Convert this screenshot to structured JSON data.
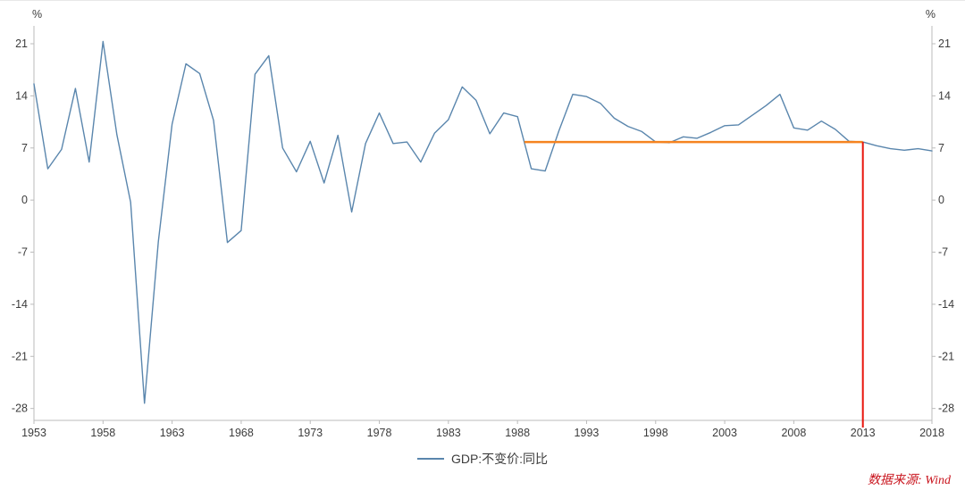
{
  "chart_data": {
    "type": "line",
    "title": "",
    "xlabel": "",
    "ylabel": "",
    "y_axis_unit": "%",
    "xlim": [
      1953,
      2018
    ],
    "ylim": [
      -29.6,
      23.4
    ],
    "x_ticks": [
      1953,
      1958,
      1963,
      1968,
      1973,
      1978,
      1983,
      1988,
      1993,
      1998,
      2003,
      2008,
      2013,
      2018
    ],
    "y_ticks": [
      21,
      14,
      7,
      0,
      -7,
      -14,
      -21,
      -28
    ],
    "grid": "off",
    "legend_position": "bottom-center",
    "series": [
      {
        "name": "GDP:不变价:同比",
        "color": "#5a86ad",
        "x": [
          1953,
          1954,
          1955,
          1956,
          1957,
          1958,
          1959,
          1960,
          1961,
          1962,
          1963,
          1964,
          1965,
          1966,
          1967,
          1968,
          1969,
          1970,
          1971,
          1972,
          1973,
          1974,
          1975,
          1976,
          1977,
          1978,
          1979,
          1980,
          1981,
          1982,
          1983,
          1984,
          1985,
          1986,
          1987,
          1988,
          1989,
          1990,
          1991,
          1992,
          1993,
          1994,
          1995,
          1996,
          1997,
          1998,
          1999,
          2000,
          2001,
          2002,
          2003,
          2004,
          2005,
          2006,
          2007,
          2008,
          2009,
          2010,
          2011,
          2012,
          2013,
          2014,
          2015,
          2016,
          2017,
          2018
        ],
        "values": [
          15.6,
          4.2,
          6.8,
          15.0,
          5.1,
          21.3,
          8.8,
          -0.3,
          -27.3,
          -5.6,
          10.2,
          18.3,
          17.0,
          10.7,
          -5.7,
          -4.1,
          16.9,
          19.4,
          7.0,
          3.8,
          7.9,
          2.3,
          8.7,
          -1.6,
          7.6,
          11.7,
          7.6,
          7.8,
          5.1,
          9.0,
          10.8,
          15.2,
          13.4,
          8.9,
          11.7,
          11.2,
          4.2,
          3.9,
          9.3,
          14.2,
          13.9,
          13.0,
          11.0,
          9.9,
          9.2,
          7.8,
          7.7,
          8.5,
          8.3,
          9.1,
          10.0,
          10.1,
          11.4,
          12.7,
          14.2,
          9.7,
          9.4,
          10.6,
          9.5,
          7.9,
          7.8,
          7.3,
          6.9,
          6.7,
          6.9,
          6.6
        ]
      }
    ],
    "annotations": {
      "orange_hline": {
        "value": 7.8,
        "x_start": 1988.5,
        "x_end": 2013,
        "color": "#f5831f"
      },
      "red_vline": {
        "x": 2013,
        "y_top": 7.8,
        "color": "#e8140c"
      }
    },
    "legend": {
      "label": "GDP:不变价:同比",
      "color": "#5a86ad"
    },
    "source": "数据来源: Wind",
    "colors": {
      "line": "#5a86ad",
      "orange": "#f5831f",
      "red": "#e8140c",
      "axis": "#bbbbbb",
      "tick_text": "#3c3c3c",
      "source_text": "#c9151e"
    }
  }
}
